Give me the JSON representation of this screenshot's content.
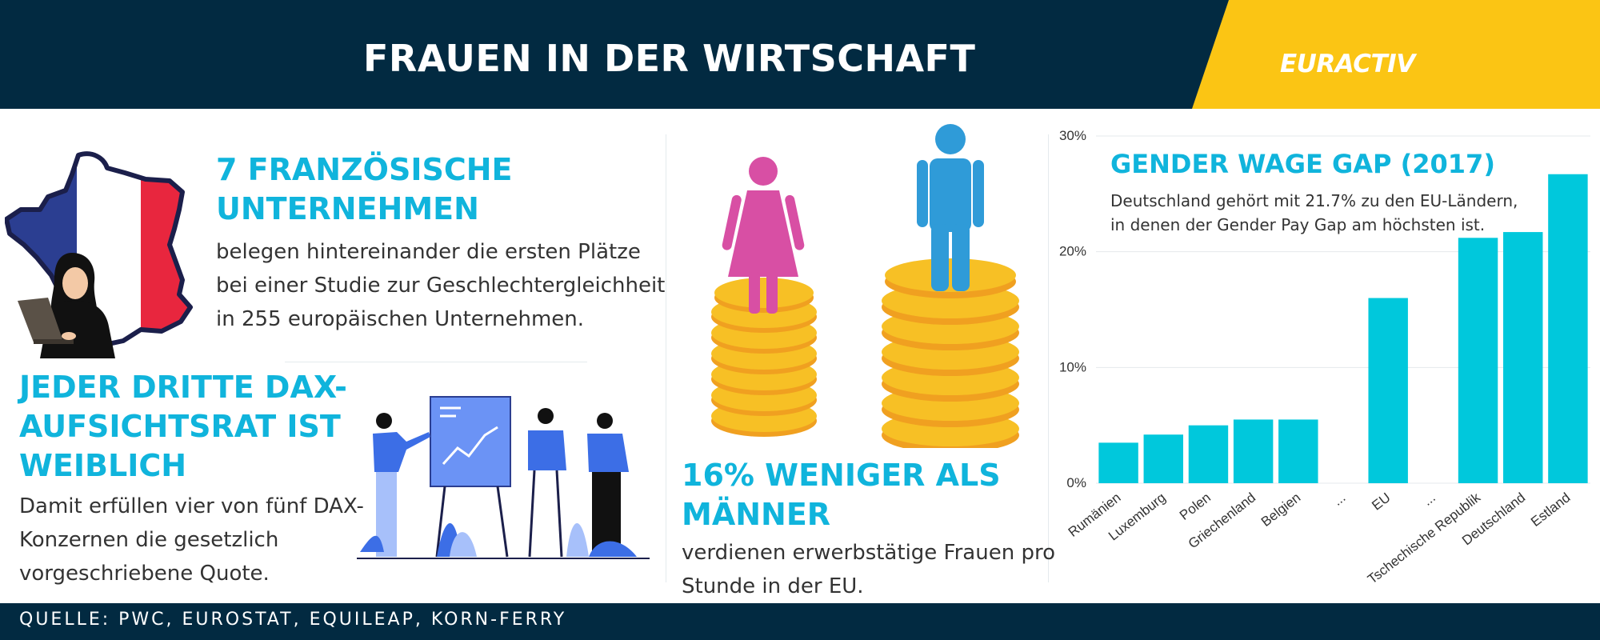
{
  "header": {
    "title": "FRAUEN IN DER WIRTSCHAFT",
    "logo": "EURACTIV",
    "background_color": "#022a41",
    "accent_color": "#fbc514"
  },
  "section_france": {
    "heading_line1": "7 FRANZÖSISCHE",
    "heading_line2": "UNTERNEHMEN",
    "body_line1": "belegen hintereinander die ersten Plätze",
    "body_line2": "bei einer Studie zur Geschlechtergleichheit",
    "body_line3": "in 255 europäischen Unternehmen."
  },
  "section_dax": {
    "heading_line1": "JEDER DRITTE DAX-",
    "heading_line2": "AUFSICHTSRAT IST",
    "heading_line3": "WEIBLICH",
    "body_line1": "Damit erfüllen vier von fünf DAX-",
    "body_line2": "Konzernen die gesetzlich",
    "body_line3": "vorgeschriebene Quote."
  },
  "section_wage": {
    "heading_line1": "16% WENIGER ALS",
    "heading_line2": "MÄNNER",
    "body_line1": "verdienen erwerbstätige Frauen pro",
    "body_line2": "Stunde in der EU."
  },
  "chart_data": {
    "type": "bar",
    "title": "GENDER WAGE GAP (2017)",
    "subtitle": "Deutschland gehört mit 21.7% zu den EU-Ländern, in denen der Gender Pay Gap am höchsten ist.",
    "categories": [
      "Rumänien",
      "Luxemburg",
      "Polen",
      "Griechenland",
      "Belgien",
      "...",
      "EU",
      "...",
      "Tschechische Republik",
      "Deutschland",
      "Estland"
    ],
    "values": [
      3.5,
      4.2,
      5.0,
      5.5,
      5.5,
      null,
      16.0,
      null,
      21.2,
      21.7,
      26.7
    ],
    "ylim": [
      0,
      30
    ],
    "yticks": [
      0,
      10,
      20,
      30
    ],
    "ytick_labels": [
      "0%",
      "10%",
      "20%",
      "30%"
    ],
    "grid": true,
    "bar_color": "#00c8dc"
  },
  "icons": {
    "france_map": "france-map-flag-icon",
    "woman_laptop": "woman-with-laptop-icon",
    "presentation": "presentation-team-icon",
    "woman": "woman-icon",
    "man": "man-icon",
    "coins": "coin-stack-icon"
  },
  "footer": {
    "source": "QUELLE: PWC, EUROSTAT, EQUILEAP, KORN-FERRY"
  }
}
